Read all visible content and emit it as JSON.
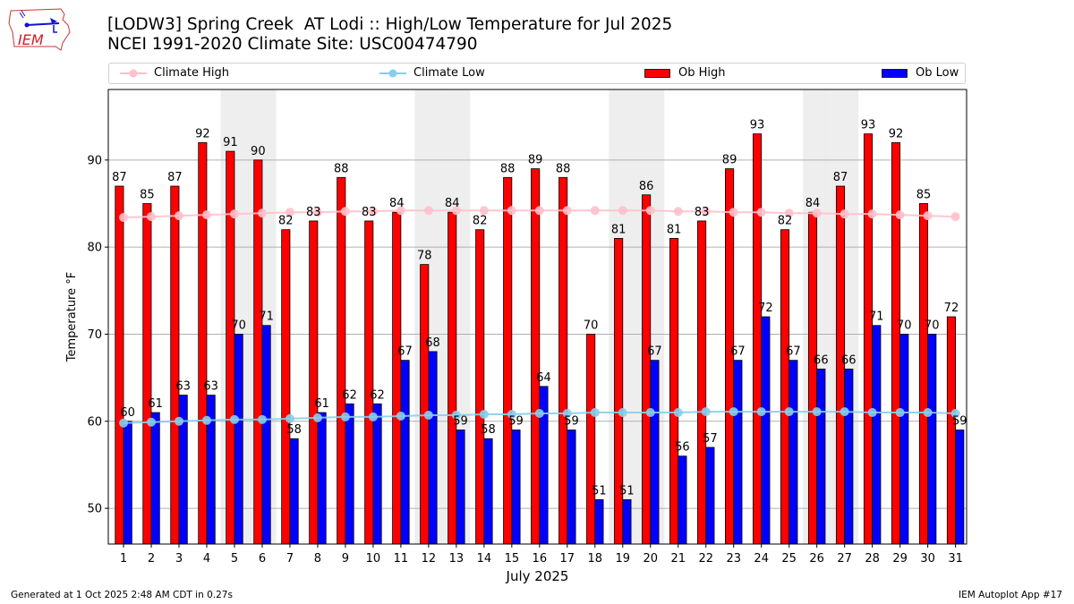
{
  "header": {
    "title_line1": "[LODW3] Spring Creek  AT Lodi :: High/Low Temperature for Jul 2025",
    "title_line2": "NCEI 1991-2020 Climate Site: USC00474790",
    "logo_text": "IEM"
  },
  "legend": {
    "items": [
      {
        "label": "Climate High",
        "kind": "line",
        "color": "#ffc0cb"
      },
      {
        "label": "Climate Low",
        "kind": "line",
        "color": "#87ceeb"
      },
      {
        "label": "Ob High",
        "kind": "bar",
        "color": "#ff0000"
      },
      {
        "label": "Ob Low",
        "kind": "bar",
        "color": "#0000ff"
      }
    ]
  },
  "footer": {
    "generated": "Generated at 1 Oct 2025 2:48 AM CDT in 0.27s",
    "app": "IEM Autoplot App #17"
  },
  "chart_data": {
    "type": "bar",
    "title": "[LODW3] Spring Creek  AT Lodi :: High/Low Temperature for Jul 2025",
    "subtitle": "NCEI 1991-2020 Climate Site: USC00474790",
    "xlabel": "July 2025",
    "ylabel": "Temperature °F",
    "xlim": [
      0.45,
      31.4
    ],
    "ylim": [
      45.9,
      98.1
    ],
    "yticks": [
      50,
      60,
      70,
      80,
      90
    ],
    "grid": true,
    "legend_position": "top",
    "weekend_shading_days": [
      5,
      6,
      12,
      13,
      19,
      20,
      26,
      27
    ],
    "categories": [
      "1",
      "2",
      "3",
      "4",
      "5",
      "6",
      "7",
      "8",
      "9",
      "10",
      "11",
      "12",
      "13",
      "14",
      "15",
      "16",
      "17",
      "18",
      "19",
      "20",
      "21",
      "22",
      "23",
      "24",
      "25",
      "26",
      "27",
      "28",
      "29",
      "30",
      "31"
    ],
    "series": [
      {
        "name": "Ob High",
        "type": "bar",
        "color": "#ff0000",
        "values": [
          87,
          85,
          87,
          92,
          91,
          90,
          82,
          83,
          88,
          83,
          84,
          78,
          84,
          82,
          88,
          89,
          88,
          70,
          81,
          86,
          81,
          83,
          89,
          93,
          82,
          84,
          87,
          93,
          92,
          85,
          72
        ]
      },
      {
        "name": "Ob Low",
        "type": "bar",
        "color": "#0000ff",
        "values": [
          60,
          61,
          63,
          63,
          70,
          71,
          58,
          61,
          62,
          62,
          67,
          68,
          59,
          58,
          59,
          64,
          59,
          51,
          51,
          67,
          56,
          57,
          67,
          72,
          67,
          66,
          66,
          71,
          70,
          70,
          59
        ]
      },
      {
        "name": "Climate High",
        "type": "line",
        "color": "#ffc0cb",
        "values": [
          83.4,
          83.5,
          83.6,
          83.7,
          83.8,
          83.9,
          84.0,
          84.0,
          84.1,
          84.1,
          84.2,
          84.2,
          84.2,
          84.2,
          84.2,
          84.2,
          84.2,
          84.2,
          84.2,
          84.2,
          84.1,
          84.1,
          84.0,
          84.0,
          83.9,
          83.9,
          83.8,
          83.8,
          83.7,
          83.6,
          83.5
        ]
      },
      {
        "name": "Climate Low",
        "type": "line",
        "color": "#87ceeb",
        "values": [
          59.8,
          59.9,
          60.0,
          60.1,
          60.2,
          60.2,
          60.3,
          60.4,
          60.5,
          60.5,
          60.6,
          60.7,
          60.7,
          60.8,
          60.8,
          60.9,
          60.9,
          61.0,
          61.0,
          61.0,
          61.0,
          61.1,
          61.1,
          61.1,
          61.1,
          61.1,
          61.1,
          61.0,
          61.0,
          61.0,
          60.9
        ]
      }
    ]
  }
}
